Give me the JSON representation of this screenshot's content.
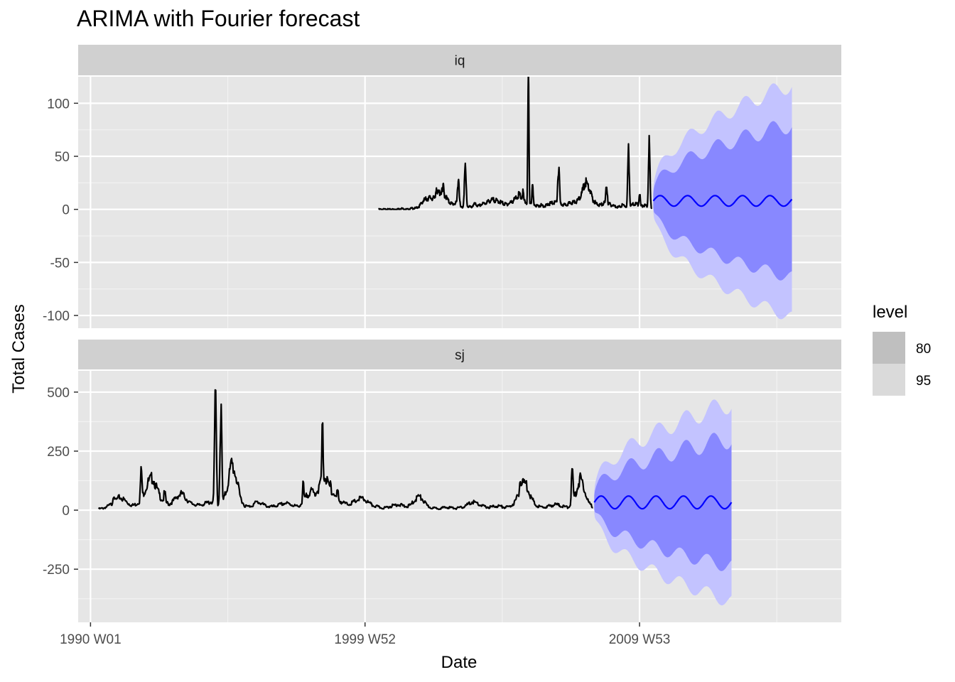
{
  "chart_data": {
    "type": "line",
    "title": "ARIMA with Fourier forecast",
    "xlabel": "Date",
    "ylabel": "Total Cases",
    "x_unit": "year",
    "xlim": [
      1989.55,
      2017.35
    ],
    "x_major_ticks": [
      {
        "x": 1990.0,
        "label": "1990 W01"
      },
      {
        "x": 2000.0,
        "label": "1999 W52"
      },
      {
        "x": 2010.0,
        "label": "2009 W53"
      }
    ],
    "x_minor_ticks": [
      1995.0,
      2005.0,
      2015.0
    ],
    "grid": true,
    "legend": {
      "title": "level",
      "position": "right",
      "entries": [
        {
          "label": "80",
          "color": "#bfbfbf"
        },
        {
          "label": "95",
          "color": "#dadada"
        }
      ]
    },
    "colors": {
      "history": "#000000",
      "forecast_mean": "#0000ff",
      "band_80": "#8888ff",
      "band_95": "#c3c3ff",
      "panel_bg": "#e6e6e6",
      "strip_bg": "#d0d0d0"
    },
    "facets": [
      {
        "label": "iq",
        "ylim": [
          -112,
          125
        ],
        "y_major_ticks": [
          -100,
          -50,
          0,
          50,
          100
        ],
        "y_minor_ticks": [
          -75,
          -25,
          25,
          75
        ],
        "history": {
          "x_start": 2000.5,
          "x_end": 2010.45,
          "baseline": [
            0,
            0,
            0,
            0,
            0,
            0,
            1,
            0,
            0,
            1,
            1,
            3,
            8,
            10,
            11,
            10,
            15,
            17,
            13,
            7,
            5,
            6,
            2,
            2,
            3,
            2,
            5,
            3,
            5,
            6,
            8,
            9,
            8,
            7,
            5,
            5,
            7,
            10,
            14,
            9,
            6,
            7,
            5,
            3,
            4,
            3,
            5,
            6,
            7,
            6,
            4,
            5,
            6,
            7,
            8,
            15,
            26,
            20,
            9,
            5,
            4,
            6,
            6,
            4,
            3,
            2,
            4,
            3,
            3,
            5,
            5,
            3,
            4,
            3,
            2
          ],
          "spikes": [
            {
              "x": 2002.6,
              "y": 22,
              "w": 0.05
            },
            {
              "x": 2002.85,
              "y": 21,
              "w": 0.05
            },
            {
              "x": 2003.4,
              "y": 29,
              "w": 0.05
            },
            {
              "x": 2003.65,
              "y": 37,
              "w": 0.05
            },
            {
              "x": 2005.75,
              "y": 16,
              "w": 0.05
            },
            {
              "x": 2005.95,
              "y": 116,
              "w": 0.03
            },
            {
              "x": 2006.1,
              "y": 20,
              "w": 0.04
            },
            {
              "x": 2007.05,
              "y": 38,
              "w": 0.05
            },
            {
              "x": 2008.0,
              "y": 13,
              "w": 0.04
            },
            {
              "x": 2008.8,
              "y": 22,
              "w": 0.05
            },
            {
              "x": 2009.6,
              "y": 58,
              "w": 0.04
            },
            {
              "x": 2010.0,
              "y": 15,
              "w": 0.04
            },
            {
              "x": 2010.35,
              "y": 63,
              "w": 0.04
            },
            {
              "x": 2010.55,
              "y": 40,
              "w": 0.04
            },
            {
              "x": 2011.6,
              "y": 17,
              "w": 0.05
            }
          ]
        },
        "forecast": {
          "x_start": 2010.5,
          "x_end": 2015.55,
          "mean_level": 8,
          "mean_amplitude": 5,
          "mean_period_years": 1.0,
          "band_80_halfwidth": [
            7,
            72
          ],
          "band_95_halfwidth": [
            10,
            110
          ],
          "band_wave_amplitude": 5
        }
      },
      {
        "label": "sj",
        "ylim": [
          -475,
          590
        ],
        "y_major_ticks": [
          -250,
          0,
          250,
          500
        ],
        "y_minor_ticks": [
          -375,
          -125,
          125,
          375
        ],
        "history": {
          "x_start": 1990.3,
          "x_end": 2008.3,
          "baseline": [
            5,
            8,
            15,
            25,
            40,
            55,
            45,
            30,
            20,
            25,
            40,
            80,
            120,
            140,
            90,
            50,
            35,
            25,
            40,
            60,
            70,
            50,
            30,
            25,
            20,
            25,
            30,
            35,
            30,
            25,
            40,
            100,
            200,
            150,
            60,
            20,
            15,
            20,
            35,
            30,
            20,
            15,
            15,
            20,
            25,
            30,
            25,
            20,
            15,
            30,
            60,
            80,
            70,
            90,
            160,
            120,
            80,
            60,
            40,
            30,
            25,
            30,
            40,
            50,
            45,
            30,
            20,
            15,
            10,
            10,
            15,
            20,
            25,
            20,
            15,
            20,
            40,
            60,
            45,
            20,
            10,
            8,
            8,
            10,
            12,
            10,
            8,
            10,
            15,
            25,
            35,
            30,
            20,
            15,
            12,
            15,
            18,
            15,
            12,
            15,
            30,
            60,
            120,
            110,
            60,
            25,
            15,
            12,
            15,
            20,
            25,
            20,
            15,
            12,
            30,
            80,
            140,
            90,
            30,
            15
          ],
          "spikes": [
            {
              "x": 1990.85,
              "y": 70,
              "w": 0.06
            },
            {
              "x": 1991.85,
              "y": 168,
              "w": 0.05
            },
            {
              "x": 1992.7,
              "y": 75,
              "w": 0.06
            },
            {
              "x": 1994.55,
              "y": 460,
              "w": 0.05
            },
            {
              "x": 1994.75,
              "y": 410,
              "w": 0.05
            },
            {
              "x": 1995.05,
              "y": 160,
              "w": 0.06
            },
            {
              "x": 1997.75,
              "y": 110,
              "w": 0.04
            },
            {
              "x": 1998.1,
              "y": 80,
              "w": 0.05
            },
            {
              "x": 1998.45,
              "y": 330,
              "w": 0.05
            },
            {
              "x": 1998.75,
              "y": 120,
              "w": 0.05
            },
            {
              "x": 1999.0,
              "y": 85,
              "w": 0.05
            },
            {
              "x": 2005.65,
              "y": 135,
              "w": 0.06
            },
            {
              "x": 2007.55,
              "y": 168,
              "w": 0.05
            }
          ]
        },
        "forecast": {
          "x_start": 2008.35,
          "x_end": 2013.35,
          "mean_level": 33,
          "mean_amplitude": 27,
          "mean_period_years": 1.0,
          "band_80_halfwidth": [
            30,
            270
          ],
          "band_95_halfwidth": [
            45,
            420
          ],
          "band_wave_amplitude": 25
        }
      }
    ]
  }
}
